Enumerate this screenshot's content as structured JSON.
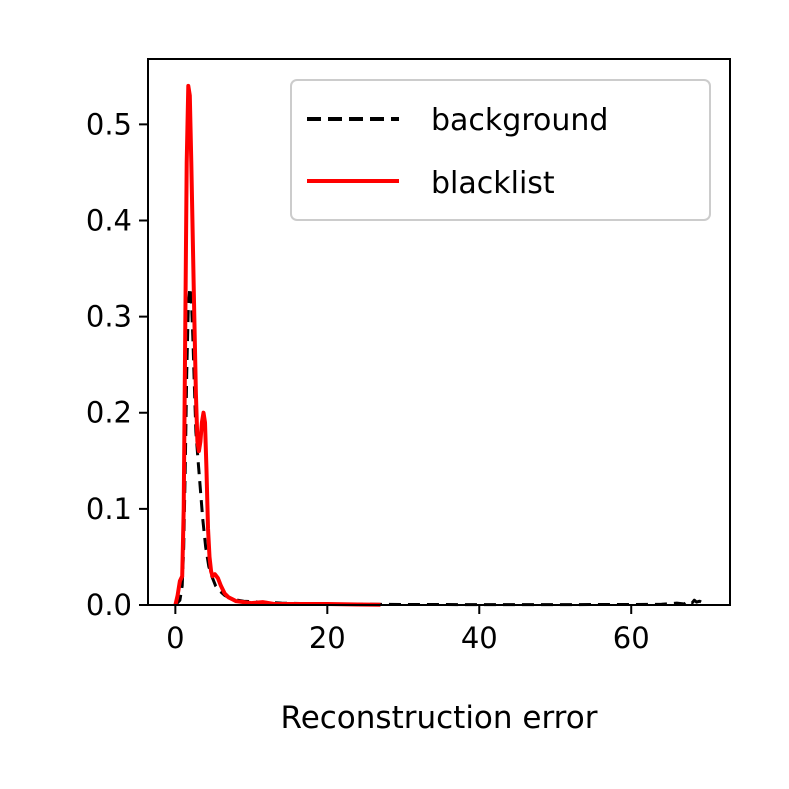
{
  "chart_data": {
    "type": "line",
    "title": "",
    "xlabel": "Reconstruction error",
    "ylabel": "",
    "xlim": [
      -3.6,
      73
    ],
    "ylim": [
      0,
      0.568
    ],
    "xticks": [
      0,
      20,
      40,
      60
    ],
    "yticks": [
      0.0,
      0.1,
      0.2,
      0.3,
      0.4,
      0.5
    ],
    "xtick_labels": [
      "0",
      "20",
      "40",
      "60"
    ],
    "ytick_labels": [
      "0.0",
      "0.1",
      "0.2",
      "0.3",
      "0.4",
      "0.5"
    ],
    "grid": false,
    "legend_position": "top-right",
    "series": [
      {
        "name": "background",
        "color": "#000000",
        "style": "dashed",
        "x": [
          0,
          0.6,
          0.9,
          1.1,
          1.3,
          1.5,
          1.7,
          1.9,
          2.1,
          2.3,
          2.5,
          2.7,
          3.0,
          3.3,
          3.6,
          4.0,
          4.4,
          4.8,
          5.3,
          5.8,
          6.5,
          7.5,
          9,
          11,
          14,
          20,
          30,
          40,
          50,
          60,
          64,
          66,
          67,
          67.5,
          68,
          68.3,
          68.6,
          69,
          69.5,
          70
        ],
        "y": [
          0,
          0.005,
          0.02,
          0.06,
          0.14,
          0.24,
          0.31,
          0.33,
          0.32,
          0.28,
          0.23,
          0.18,
          0.15,
          0.12,
          0.09,
          0.06,
          0.04,
          0.03,
          0.02,
          0.015,
          0.01,
          0.006,
          0.004,
          0.003,
          0.002,
          0.001,
          0.0005,
          0.0004,
          0.0004,
          0.0005,
          0.0007,
          0.002,
          0.001,
          0.004,
          0.002,
          0.005,
          0.003,
          0.004,
          0.002,
          0.001
        ]
      },
      {
        "name": "blacklist",
        "color": "#ff0000",
        "style": "solid",
        "x": [
          0,
          0.3,
          0.6,
          0.9,
          1.1,
          1.3,
          1.5,
          1.7,
          1.9,
          2.1,
          2.3,
          2.5,
          2.7,
          2.9,
          3.1,
          3.3,
          3.5,
          3.7,
          3.9,
          4.1,
          4.3,
          4.5,
          4.7,
          4.9,
          5.2,
          5.6,
          6.0,
          6.5,
          7.0,
          7.5,
          8.0,
          9.0,
          10.0,
          11.5,
          13,
          16,
          20,
          24,
          27
        ],
        "y": [
          0,
          0.01,
          0.025,
          0.03,
          0.1,
          0.28,
          0.46,
          0.54,
          0.53,
          0.46,
          0.38,
          0.3,
          0.22,
          0.17,
          0.16,
          0.17,
          0.19,
          0.2,
          0.19,
          0.14,
          0.08,
          0.05,
          0.035,
          0.03,
          0.032,
          0.028,
          0.02,
          0.012,
          0.008,
          0.006,
          0.004,
          0.003,
          0.002,
          0.003,
          0.001,
          0.001,
          0.001,
          0.0005,
          0.0002
        ]
      }
    ]
  }
}
